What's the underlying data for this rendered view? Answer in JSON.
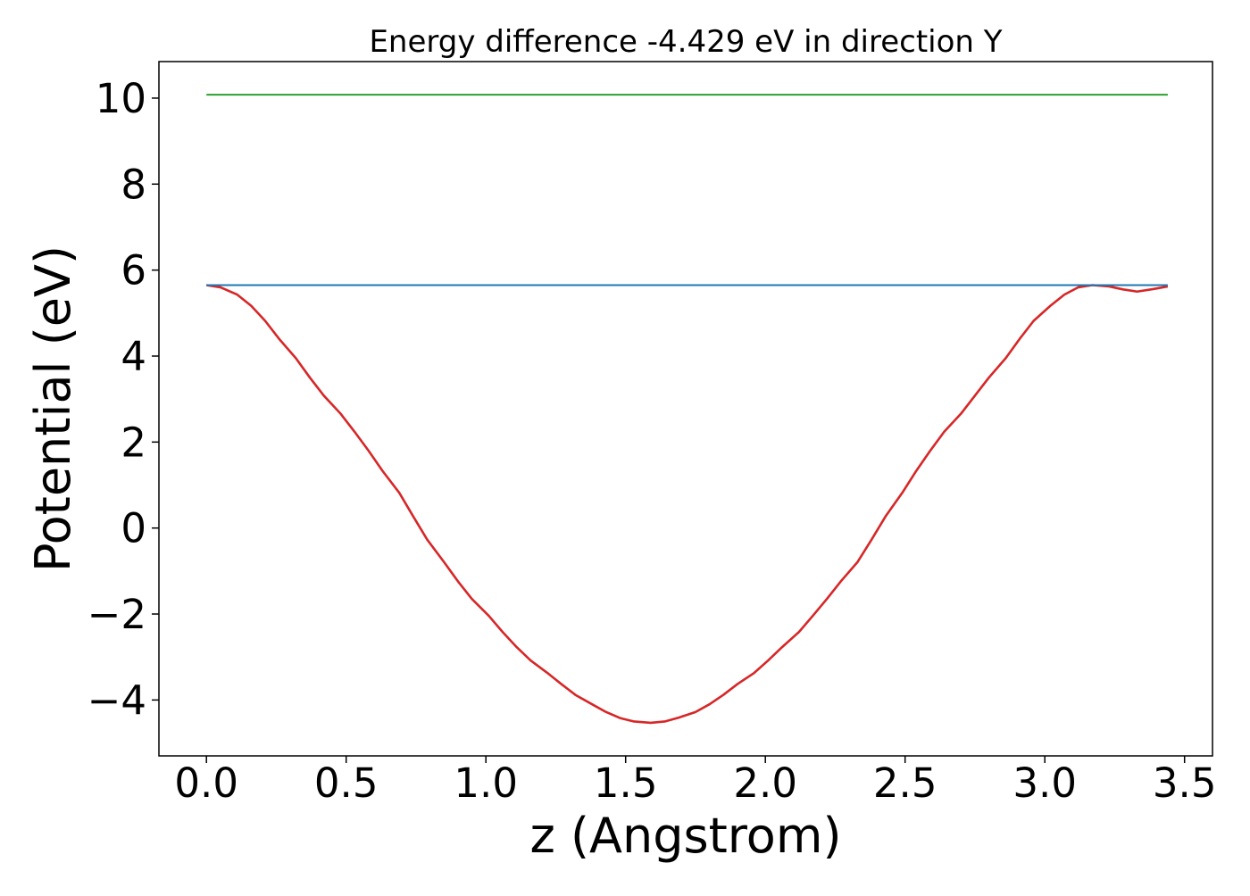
{
  "chart_data": {
    "type": "line",
    "title": "Energy difference -4.429 eV in direction Y",
    "xlabel": "z (Angstrom)",
    "ylabel": "Potential (eV)",
    "xlim": [
      -0.17,
      3.6
    ],
    "ylim": [
      -5.3,
      10.85
    ],
    "xticks": [
      0.0,
      0.5,
      1.0,
      1.5,
      2.0,
      2.5,
      3.0,
      3.5
    ],
    "xtick_labels": [
      "0.0",
      "0.5",
      "1.0",
      "1.5",
      "2.0",
      "2.5",
      "3.0",
      "3.5"
    ],
    "yticks": [
      -4,
      -2,
      0,
      2,
      4,
      6,
      8,
      10
    ],
    "ytick_labels": [
      "−4",
      "−2",
      "0",
      "2",
      "4",
      "6",
      "8",
      "10"
    ],
    "grid": false,
    "legend": "none",
    "series": [
      {
        "color": "#d62728",
        "x": [
          0.0,
          0.05,
          0.11,
          0.16,
          0.21,
          0.26,
          0.32,
          0.37,
          0.42,
          0.48,
          0.53,
          0.58,
          0.63,
          0.69,
          0.74,
          0.79,
          0.85,
          0.9,
          0.95,
          1.01,
          1.06,
          1.11,
          1.16,
          1.22,
          1.27,
          1.32,
          1.38,
          1.43,
          1.48,
          1.53,
          1.59,
          1.64,
          1.69,
          1.75,
          1.8,
          1.85,
          1.9,
          1.96,
          2.01,
          2.06,
          2.12,
          2.17,
          2.22,
          2.27,
          2.33,
          2.38,
          2.43,
          2.49,
          2.54,
          2.59,
          2.64,
          2.7,
          2.75,
          2.8,
          2.86,
          2.91,
          2.96,
          3.02,
          3.07,
          3.12,
          3.17,
          3.23,
          3.28,
          3.33,
          3.39,
          3.44
        ],
        "y": [
          5.65,
          5.6,
          5.43,
          5.17,
          4.82,
          4.4,
          3.95,
          3.5,
          3.08,
          2.66,
          2.24,
          1.8,
          1.33,
          0.82,
          0.27,
          -0.27,
          -0.79,
          -1.24,
          -1.65,
          -2.04,
          -2.42,
          -2.77,
          -3.08,
          -3.37,
          -3.63,
          -3.88,
          -4.1,
          -4.28,
          -4.42,
          -4.5,
          -4.53,
          -4.5,
          -4.41,
          -4.28,
          -4.1,
          -3.88,
          -3.63,
          -3.37,
          -3.08,
          -2.77,
          -2.42,
          -2.04,
          -1.65,
          -1.24,
          -0.79,
          -0.27,
          0.27,
          0.82,
          1.33,
          1.8,
          2.24,
          2.66,
          3.08,
          3.5,
          3.95,
          4.4,
          4.82,
          5.17,
          5.43,
          5.6,
          5.65,
          5.62,
          5.55,
          5.5,
          5.56,
          5.62
        ]
      },
      {
        "color": "#1f77b4",
        "x": [
          0.0,
          3.44
        ],
        "y": [
          5.65,
          5.65
        ]
      },
      {
        "color": "#2ca02c",
        "x": [
          0.0,
          3.44
        ],
        "y": [
          10.08,
          10.08
        ]
      }
    ]
  }
}
